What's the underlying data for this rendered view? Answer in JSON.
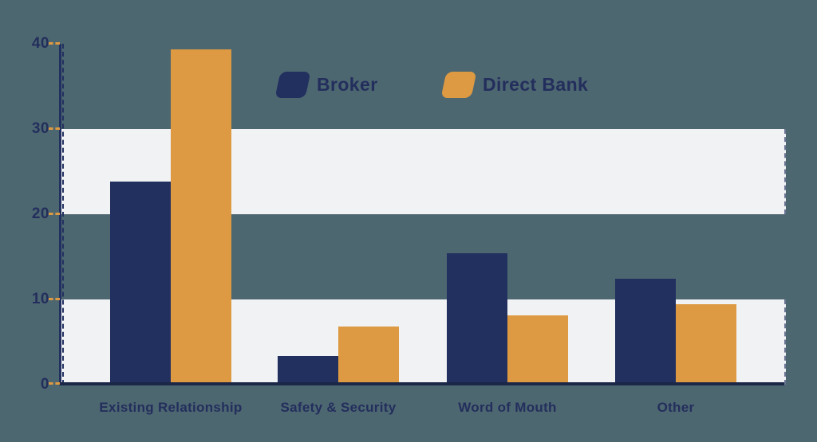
{
  "page": {
    "background_color": "#4d6771",
    "band_color": "#f1f2f4",
    "text_color": "#232e5c",
    "axis_color": "#1c2747",
    "tick_color": "#dd9a42"
  },
  "chart_data": {
    "type": "bar",
    "title": "",
    "xlabel": "",
    "ylabel": "",
    "categories": [
      "Existing Relationship",
      "Safety & Security",
      "Word of Mouth",
      "Other"
    ],
    "series": [
      {
        "name": "Broker",
        "color": "#22305f",
        "values": [
          23.8,
          3.4,
          15.4,
          12.4
        ]
      },
      {
        "name": "Direct Bank",
        "color": "#dd9a42",
        "values": [
          39.3,
          6.8,
          8.1,
          9.4
        ]
      }
    ],
    "ylim": [
      0,
      40
    ],
    "yticks": [
      40,
      30,
      20,
      10,
      0
    ],
    "grid_bands": [
      [
        20,
        30
      ],
      [
        0,
        10
      ]
    ],
    "legend_position": "top-center",
    "legend": [
      "Broker",
      "Direct Bank"
    ]
  }
}
